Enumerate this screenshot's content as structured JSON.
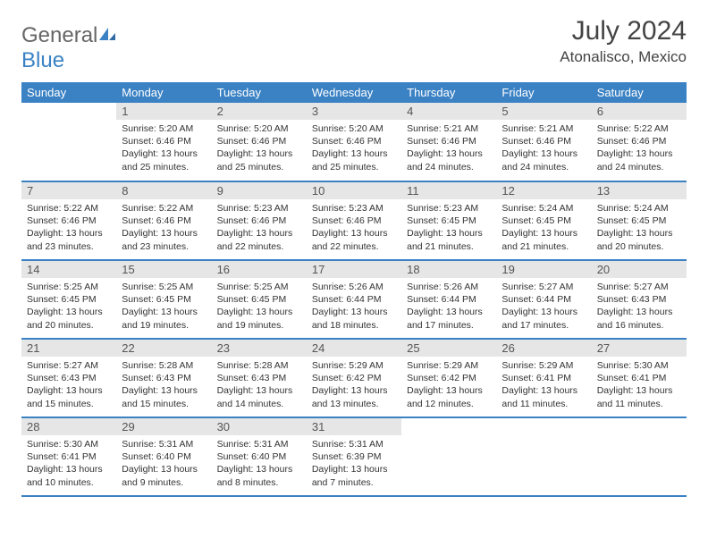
{
  "header": {
    "logo_gen": "General",
    "logo_blue": "Blue",
    "month": "July 2024",
    "location": "Atonalisco, Mexico"
  },
  "colors": {
    "header_bg": "#3b82c4",
    "header_text": "#ffffff",
    "daynum_bg": "#e6e6e6",
    "row_border": "#3b82c4",
    "body_text": "#333333"
  },
  "day_labels": [
    "Sunday",
    "Monday",
    "Tuesday",
    "Wednesday",
    "Thursday",
    "Friday",
    "Saturday"
  ],
  "weeks": [
    [
      {
        "n": "",
        "sr": "",
        "ss": "",
        "dl": ""
      },
      {
        "n": "1",
        "sr": "5:20 AM",
        "ss": "6:46 PM",
        "dl": "13 hours and 25 minutes."
      },
      {
        "n": "2",
        "sr": "5:20 AM",
        "ss": "6:46 PM",
        "dl": "13 hours and 25 minutes."
      },
      {
        "n": "3",
        "sr": "5:20 AM",
        "ss": "6:46 PM",
        "dl": "13 hours and 25 minutes."
      },
      {
        "n": "4",
        "sr": "5:21 AM",
        "ss": "6:46 PM",
        "dl": "13 hours and 24 minutes."
      },
      {
        "n": "5",
        "sr": "5:21 AM",
        "ss": "6:46 PM",
        "dl": "13 hours and 24 minutes."
      },
      {
        "n": "6",
        "sr": "5:22 AM",
        "ss": "6:46 PM",
        "dl": "13 hours and 24 minutes."
      }
    ],
    [
      {
        "n": "7",
        "sr": "5:22 AM",
        "ss": "6:46 PM",
        "dl": "13 hours and 23 minutes."
      },
      {
        "n": "8",
        "sr": "5:22 AM",
        "ss": "6:46 PM",
        "dl": "13 hours and 23 minutes."
      },
      {
        "n": "9",
        "sr": "5:23 AM",
        "ss": "6:46 PM",
        "dl": "13 hours and 22 minutes."
      },
      {
        "n": "10",
        "sr": "5:23 AM",
        "ss": "6:46 PM",
        "dl": "13 hours and 22 minutes."
      },
      {
        "n": "11",
        "sr": "5:23 AM",
        "ss": "6:45 PM",
        "dl": "13 hours and 21 minutes."
      },
      {
        "n": "12",
        "sr": "5:24 AM",
        "ss": "6:45 PM",
        "dl": "13 hours and 21 minutes."
      },
      {
        "n": "13",
        "sr": "5:24 AM",
        "ss": "6:45 PM",
        "dl": "13 hours and 20 minutes."
      }
    ],
    [
      {
        "n": "14",
        "sr": "5:25 AM",
        "ss": "6:45 PM",
        "dl": "13 hours and 20 minutes."
      },
      {
        "n": "15",
        "sr": "5:25 AM",
        "ss": "6:45 PM",
        "dl": "13 hours and 19 minutes."
      },
      {
        "n": "16",
        "sr": "5:25 AM",
        "ss": "6:45 PM",
        "dl": "13 hours and 19 minutes."
      },
      {
        "n": "17",
        "sr": "5:26 AM",
        "ss": "6:44 PM",
        "dl": "13 hours and 18 minutes."
      },
      {
        "n": "18",
        "sr": "5:26 AM",
        "ss": "6:44 PM",
        "dl": "13 hours and 17 minutes."
      },
      {
        "n": "19",
        "sr": "5:27 AM",
        "ss": "6:44 PM",
        "dl": "13 hours and 17 minutes."
      },
      {
        "n": "20",
        "sr": "5:27 AM",
        "ss": "6:43 PM",
        "dl": "13 hours and 16 minutes."
      }
    ],
    [
      {
        "n": "21",
        "sr": "5:27 AM",
        "ss": "6:43 PM",
        "dl": "13 hours and 15 minutes."
      },
      {
        "n": "22",
        "sr": "5:28 AM",
        "ss": "6:43 PM",
        "dl": "13 hours and 15 minutes."
      },
      {
        "n": "23",
        "sr": "5:28 AM",
        "ss": "6:43 PM",
        "dl": "13 hours and 14 minutes."
      },
      {
        "n": "24",
        "sr": "5:29 AM",
        "ss": "6:42 PM",
        "dl": "13 hours and 13 minutes."
      },
      {
        "n": "25",
        "sr": "5:29 AM",
        "ss": "6:42 PM",
        "dl": "13 hours and 12 minutes."
      },
      {
        "n": "26",
        "sr": "5:29 AM",
        "ss": "6:41 PM",
        "dl": "13 hours and 11 minutes."
      },
      {
        "n": "27",
        "sr": "5:30 AM",
        "ss": "6:41 PM",
        "dl": "13 hours and 11 minutes."
      }
    ],
    [
      {
        "n": "28",
        "sr": "5:30 AM",
        "ss": "6:41 PM",
        "dl": "13 hours and 10 minutes."
      },
      {
        "n": "29",
        "sr": "5:31 AM",
        "ss": "6:40 PM",
        "dl": "13 hours and 9 minutes."
      },
      {
        "n": "30",
        "sr": "5:31 AM",
        "ss": "6:40 PM",
        "dl": "13 hours and 8 minutes."
      },
      {
        "n": "31",
        "sr": "5:31 AM",
        "ss": "6:39 PM",
        "dl": "13 hours and 7 minutes."
      },
      {
        "n": "",
        "sr": "",
        "ss": "",
        "dl": ""
      },
      {
        "n": "",
        "sr": "",
        "ss": "",
        "dl": ""
      },
      {
        "n": "",
        "sr": "",
        "ss": "",
        "dl": ""
      }
    ]
  ],
  "labels": {
    "sunrise": "Sunrise: ",
    "sunset": "Sunset: ",
    "daylight": "Daylight: "
  }
}
